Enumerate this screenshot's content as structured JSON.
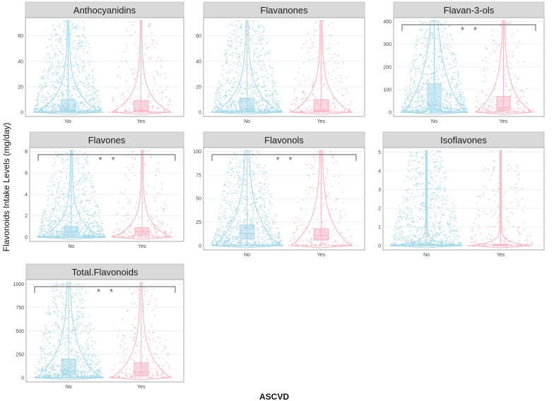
{
  "chart_data": {
    "type": "violin",
    "ylabel": "Flavonoids Intake Levels (mg/day)",
    "xlabel": "ASCVD",
    "groups": [
      "No",
      "Yes"
    ],
    "colors": {
      "No": "#a8d8e8",
      "Yes": "#f4b6c2"
    },
    "panels": [
      {
        "title": "Anthocyanidins",
        "ylim": [
          0,
          72
        ],
        "yticks": [
          0,
          20,
          40,
          60
        ],
        "significance": "",
        "box": {
          "No": {
            "q1": 0.5,
            "median": 2,
            "q3": 10
          },
          "Yes": {
            "q1": 0.3,
            "median": 1.5,
            "q3": 9
          }
        }
      },
      {
        "title": "Flavanones",
        "ylim": [
          0,
          72
        ],
        "yticks": [
          0,
          20,
          40,
          60
        ],
        "significance": "",
        "box": {
          "No": {
            "q1": 0.5,
            "median": 2,
            "q3": 11
          },
          "Yes": {
            "q1": 0.3,
            "median": 1.5,
            "q3": 10
          }
        }
      },
      {
        "title": "Flavan-3-ols",
        "ylim": [
          0,
          405
        ],
        "yticks": [
          0,
          100,
          200,
          300,
          400
        ],
        "significance": "* *",
        "box": {
          "No": {
            "q1": 10,
            "median": 30,
            "q3": 125
          },
          "Yes": {
            "q1": 8,
            "median": 20,
            "q3": 70
          }
        }
      },
      {
        "title": "Flavones",
        "ylim": [
          0,
          8.1
        ],
        "yticks": [
          0,
          2,
          4,
          6,
          8
        ],
        "significance": "* *",
        "box": {
          "No": {
            "q1": 0.2,
            "median": 0.5,
            "q3": 1.0
          },
          "Yes": {
            "q1": 0.2,
            "median": 0.5,
            "q3": 0.9
          }
        }
      },
      {
        "title": "Flavonols",
        "ylim": [
          0,
          101
        ],
        "yticks": [
          0,
          25,
          50,
          75,
          100
        ],
        "significance": "* *",
        "box": {
          "No": {
            "q1": 7,
            "median": 13,
            "q3": 22
          },
          "Yes": {
            "q1": 6,
            "median": 11,
            "q3": 18
          }
        }
      },
      {
        "title": "Isoflavones",
        "ylim": [
          0,
          5.1
        ],
        "yticks": [
          0,
          1,
          2,
          3,
          4,
          5
        ],
        "significance": "",
        "box": {
          "No": {
            "q1": 0.0,
            "median": 0.02,
            "q3": 0.1
          },
          "Yes": {
            "q1": 0.0,
            "median": 0.02,
            "q3": 0.08
          }
        }
      },
      {
        "title": "Total.Flavonoids",
        "ylim": [
          0,
          1020
        ],
        "yticks": [
          0,
          250,
          500,
          750,
          1000
        ],
        "significance": "* *",
        "box": {
          "No": {
            "q1": 30,
            "median": 70,
            "q3": 200
          },
          "Yes": {
            "q1": 25,
            "median": 60,
            "q3": 160
          }
        }
      }
    ]
  }
}
